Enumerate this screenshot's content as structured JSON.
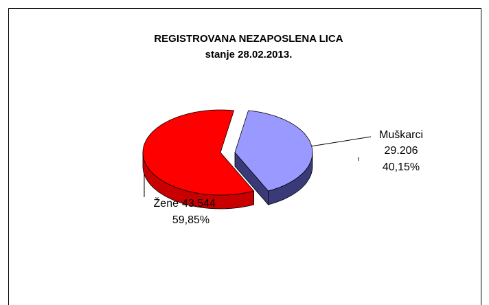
{
  "chart_data": {
    "type": "pie",
    "title": "REGISTROVANA NEZAPOSLENA LICA",
    "subtitle": "stanje 28.02.2013.",
    "categories": [
      "Muškarci",
      "Žene"
    ],
    "values": [
      29206,
      43544
    ],
    "value_labels": [
      "29.206",
      "43.544"
    ],
    "percent_labels": [
      "40,15%",
      "59,85%"
    ],
    "colors": [
      "#9999ff",
      "#ff0000"
    ],
    "side_colors": [
      "#3a3a78",
      "#c80000"
    ]
  }
}
